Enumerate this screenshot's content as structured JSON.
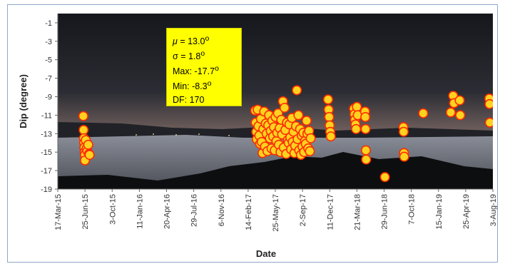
{
  "chart_data": {
    "type": "scatter",
    "title": "",
    "xlabel": "Date",
    "ylabel": "Dip (degree)",
    "x_ticks": [
      "17-Mar-15",
      "25-Jun-15",
      "3-Oct-15",
      "11-Jan-16",
      "20-Apr-16",
      "29-Jul-16",
      "6-Nov-16",
      "14-Feb-17",
      "25-May-17",
      "2-Sep-17",
      "11-Dec-17",
      "21-Mar-18",
      "29-Jun-18",
      "7-Oct-18",
      "15-Jan-19",
      "25-Apr-19",
      "3-Aug-19"
    ],
    "xlim": [
      "2015-03-17",
      "2019-08-03"
    ],
    "ylim": [
      -19,
      0
    ],
    "y_ticks": [
      -1,
      -3,
      -5,
      -7,
      -9,
      -11,
      -13,
      -15,
      -17,
      -19
    ],
    "marker_fill": "#ffd21f",
    "marker_edge": "#ff2a00",
    "grid": false,
    "legend": "none",
    "background": "night landscape photograph",
    "annotation": {
      "mu": "13.0",
      "mu_unit": "o",
      "sigma": "σ = 1.8",
      "sigma_unit": "o",
      "max": "Max: -17.7",
      "max_unit": "o",
      "min": "Min: -8.3",
      "min_unit": "o",
      "df": "DF: 170"
    },
    "points": [
      {
        "x": "2015-06-19",
        "y": -11.1
      },
      {
        "x": "2015-06-20",
        "y": -12.6
      },
      {
        "x": "2015-06-21",
        "y": -13.5
      },
      {
        "x": "2015-06-22",
        "y": -14.0
      },
      {
        "x": "2015-06-23",
        "y": -14.5
      },
      {
        "x": "2015-06-24",
        "y": -15.0
      },
      {
        "x": "2015-06-25",
        "y": -15.3
      },
      {
        "x": "2015-06-25",
        "y": -15.9
      },
      {
        "x": "2015-06-28",
        "y": -13.7
      },
      {
        "x": "2015-07-01",
        "y": -14.6
      },
      {
        "x": "2015-07-04",
        "y": -14.9
      },
      {
        "x": "2015-07-07",
        "y": -14.2
      },
      {
        "x": "2015-07-10",
        "y": -15.2
      },
      {
        "x": "2015-07-12",
        "y": -15.3
      },
      {
        "x": "2017-03-12",
        "y": -10.5
      },
      {
        "x": "2017-03-14",
        "y": -11.8
      },
      {
        "x": "2017-03-16",
        "y": -12.8
      },
      {
        "x": "2017-03-18",
        "y": -13.6
      },
      {
        "x": "2017-03-21",
        "y": -10.4
      },
      {
        "x": "2017-03-24",
        "y": -12.2
      },
      {
        "x": "2017-03-27",
        "y": -13.2
      },
      {
        "x": "2017-03-30",
        "y": -14.1
      },
      {
        "x": "2017-04-02",
        "y": -11.4
      },
      {
        "x": "2017-04-05",
        "y": -13.9
      },
      {
        "x": "2017-04-08",
        "y": -15.1
      },
      {
        "x": "2017-04-11",
        "y": -12.5
      },
      {
        "x": "2017-04-14",
        "y": -10.6
      },
      {
        "x": "2017-04-17",
        "y": -14.4
      },
      {
        "x": "2017-04-20",
        "y": -11.9
      },
      {
        "x": "2017-04-23",
        "y": -13.0
      },
      {
        "x": "2017-04-26",
        "y": -14.9
      },
      {
        "x": "2017-04-29",
        "y": -12.1
      },
      {
        "x": "2017-05-02",
        "y": -11.0
      },
      {
        "x": "2017-05-05",
        "y": -13.5
      },
      {
        "x": "2017-05-08",
        "y": -12.7
      },
      {
        "x": "2017-05-11",
        "y": -14.6
      },
      {
        "x": "2017-05-14",
        "y": -11.6
      },
      {
        "x": "2017-05-17",
        "y": -13.3
      },
      {
        "x": "2017-05-20",
        "y": -12.3
      },
      {
        "x": "2017-05-23",
        "y": -14.8
      },
      {
        "x": "2017-05-26",
        "y": -11.2
      },
      {
        "x": "2017-05-29",
        "y": -13.8
      },
      {
        "x": "2017-06-01",
        "y": -12.9
      },
      {
        "x": "2017-06-04",
        "y": -10.8
      },
      {
        "x": "2017-06-07",
        "y": -14.2
      },
      {
        "x": "2017-06-10",
        "y": -12.4
      },
      {
        "x": "2017-06-13",
        "y": -15.0
      },
      {
        "x": "2017-06-16",
        "y": -11.5
      },
      {
        "x": "2017-06-19",
        "y": -13.1
      },
      {
        "x": "2017-06-22",
        "y": -9.5
      },
      {
        "x": "2017-06-25",
        "y": -14.5
      },
      {
        "x": "2017-06-28",
        "y": -10.2
      },
      {
        "x": "2017-07-01",
        "y": -12.6
      },
      {
        "x": "2017-07-04",
        "y": -15.2
      },
      {
        "x": "2017-07-07",
        "y": -11.8
      },
      {
        "x": "2017-07-10",
        "y": -13.7
      },
      {
        "x": "2017-07-13",
        "y": -14.0
      },
      {
        "x": "2017-07-16",
        "y": -12.0
      },
      {
        "x": "2017-07-19",
        "y": -13.4
      },
      {
        "x": "2017-07-22",
        "y": -14.7
      },
      {
        "x": "2017-07-25",
        "y": -11.3
      },
      {
        "x": "2017-07-28",
        "y": -13.9
      },
      {
        "x": "2017-07-31",
        "y": -12.8
      },
      {
        "x": "2017-08-03",
        "y": -15.1
      },
      {
        "x": "2017-08-06",
        "y": -14.3
      },
      {
        "x": "2017-08-09",
        "y": -12.2
      },
      {
        "x": "2017-08-12",
        "y": -8.3
      },
      {
        "x": "2017-08-15",
        "y": -13.6
      },
      {
        "x": "2017-08-18",
        "y": -11.0
      },
      {
        "x": "2017-08-21",
        "y": -14.8
      },
      {
        "x": "2017-08-24",
        "y": -12.5
      },
      {
        "x": "2017-08-27",
        "y": -15.3
      },
      {
        "x": "2017-08-30",
        "y": -13.2
      },
      {
        "x": "2017-09-02",
        "y": -14.4
      },
      {
        "x": "2017-09-05",
        "y": -12.9
      },
      {
        "x": "2017-09-08",
        "y": -15.0
      },
      {
        "x": "2017-09-11",
        "y": -13.8
      },
      {
        "x": "2017-09-14",
        "y": -14.1
      },
      {
        "x": "2017-09-17",
        "y": -11.6
      },
      {
        "x": "2017-09-20",
        "y": -13.0
      },
      {
        "x": "2017-09-23",
        "y": -14.6
      },
      {
        "x": "2017-09-26",
        "y": -12.7
      },
      {
        "x": "2017-09-29",
        "y": -14.9
      },
      {
        "x": "2017-10-02",
        "y": -13.5
      },
      {
        "x": "2017-12-05",
        "y": -9.3
      },
      {
        "x": "2017-12-07",
        "y": -10.4
      },
      {
        "x": "2017-12-09",
        "y": -11.2
      },
      {
        "x": "2017-12-11",
        "y": -12.1
      },
      {
        "x": "2017-12-13",
        "y": -12.8
      },
      {
        "x": "2017-12-15",
        "y": -13.3
      },
      {
        "x": "2018-03-10",
        "y": -10.3
      },
      {
        "x": "2018-03-12",
        "y": -10.9
      },
      {
        "x": "2018-03-14",
        "y": -11.5
      },
      {
        "x": "2018-03-16",
        "y": -12.0
      },
      {
        "x": "2018-03-18",
        "y": -12.5
      },
      {
        "x": "2018-03-21",
        "y": -10.1
      },
      {
        "x": "2018-03-24",
        "y": -11.0
      },
      {
        "x": "2018-04-20",
        "y": -10.6
      },
      {
        "x": "2018-04-21",
        "y": -11.2
      },
      {
        "x": "2018-04-22",
        "y": -12.5
      },
      {
        "x": "2018-04-23",
        "y": -14.8
      },
      {
        "x": "2018-04-24",
        "y": -15.8
      },
      {
        "x": "2018-07-02",
        "y": -17.7
      },
      {
        "x": "2018-09-08",
        "y": -12.3
      },
      {
        "x": "2018-09-09",
        "y": -12.8
      },
      {
        "x": "2018-09-10",
        "y": -15.1
      },
      {
        "x": "2018-09-11",
        "y": -15.5
      },
      {
        "x": "2018-11-20",
        "y": -10.8
      },
      {
        "x": "2019-03-01",
        "y": -10.7
      },
      {
        "x": "2019-03-10",
        "y": -8.9
      },
      {
        "x": "2019-03-13",
        "y": -9.7
      },
      {
        "x": "2019-04-03",
        "y": -9.4
      },
      {
        "x": "2019-04-05",
        "y": -11.0
      },
      {
        "x": "2019-07-21",
        "y": -9.2
      },
      {
        "x": "2019-07-22",
        "y": -9.8
      },
      {
        "x": "2019-07-23",
        "y": -11.8
      }
    ]
  }
}
